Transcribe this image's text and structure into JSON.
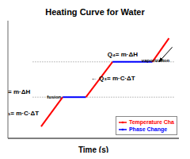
{
  "chart_data": {
    "type": "line",
    "title": "Heating Curve for Water",
    "x_label": "Time (s)",
    "xlim": [
      -1.5,
      8.8
    ],
    "ylim": [
      -0.2,
      3.8
    ],
    "tick_labels": false,
    "legend": "lower right",
    "series": [
      {
        "name": "Temperature Cha",
        "color": "red",
        "x": [
          0.5,
          1.8
        ],
        "values": [
          0.2,
          1.2
        ]
      },
      {
        "name": "Phase Change",
        "color": "blue",
        "x": [
          1.8,
          3.2
        ],
        "values": [
          1.2,
          1.2
        ]
      },
      {
        "name": "Temperature Cha",
        "color": "red",
        "x": [
          3.2,
          4.8
        ],
        "values": [
          1.2,
          2.4
        ]
      },
      {
        "name": "Phase Change",
        "color": "blue",
        "x": [
          4.8,
          7.2
        ],
        "values": [
          2.4,
          2.4
        ]
      },
      {
        "name": "Temperature Cha",
        "color": "red",
        "x": [
          7.2,
          8.2
        ],
        "values": [
          2.4,
          3.2
        ]
      }
    ],
    "reference_lines": [
      {
        "y": 1.2,
        "xmin": 0.0,
        "xmax": 8.5
      },
      {
        "y": 2.4,
        "xmin": 0.0,
        "xmax": 8.5
      }
    ],
    "annotations": [
      {
        "text": "Q₄= m·ΔH",
        "x": 4.5,
        "y": 2.58
      },
      {
        "text": "vaporization",
        "x": 6.55,
        "y": 2.5
      },
      {
        "text": "← Q₃= m·C·ΔT",
        "x": 3.5,
        "y": 1.85
      },
      {
        "text": "= m·ΔH",
        "x": -1.5,
        "y": 1.38
      },
      {
        "text": "fusion",
        "x": 0.85,
        "y": 1.27
      },
      {
        "text": "₁= m·C·ΔT",
        "x": -1.5,
        "y": 0.65
      }
    ],
    "arrows": [
      {
        "from": [
          8.4,
          2.9
        ],
        "to": [
          7.6,
          2.4
        ]
      }
    ]
  }
}
